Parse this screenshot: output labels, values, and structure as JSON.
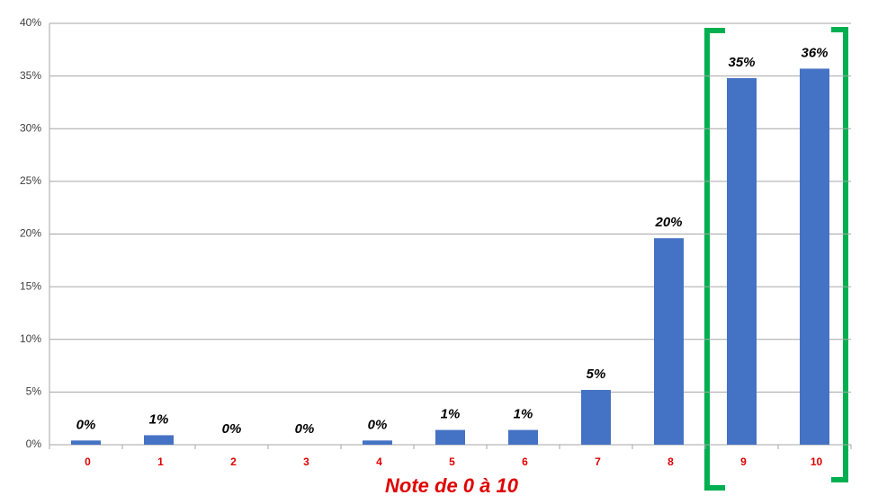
{
  "chart_data": {
    "type": "bar",
    "x_label": "Note de 0 à 10",
    "categories": [
      "0",
      "1",
      "2",
      "3",
      "4",
      "5",
      "6",
      "7",
      "8",
      "9",
      "10"
    ],
    "values": [
      0.4,
      0.9,
      0,
      0,
      0.4,
      1.4,
      1.4,
      5.2,
      19.6,
      34.8,
      35.7
    ],
    "value_labels": [
      "0%",
      "1%",
      "0%",
      "0%",
      "0%",
      "1%",
      "1%",
      "5%",
      "20%",
      "35%",
      "36%"
    ],
    "color": "#4472c4",
    "ylim": [
      0,
      40
    ],
    "yticks": [
      {
        "value": 0,
        "label": "0%"
      },
      {
        "value": 5,
        "label": "5%"
      },
      {
        "value": 10,
        "label": "10%"
      },
      {
        "value": 15,
        "label": "15%"
      },
      {
        "value": 20,
        "label": "20%"
      },
      {
        "value": 25,
        "label": "25%"
      },
      {
        "value": 30,
        "label": "30%"
      },
      {
        "value": 35,
        "label": "35%"
      },
      {
        "value": 40,
        "label": "40%"
      }
    ],
    "grid": true
  }
}
